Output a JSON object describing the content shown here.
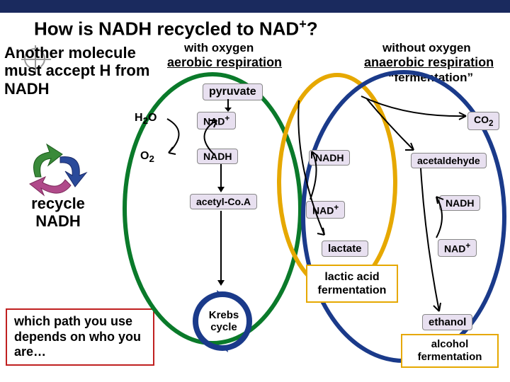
{
  "title_html": "How is NADH recycled to NAD<sup>+</sup>?",
  "side": {
    "another": "Another molecule must accept H from NADH",
    "recycle": "recycle NADH",
    "which": "which path you use depends on who you are…"
  },
  "headers": {
    "with_oxygen": "with oxygen",
    "aerobic": "aerobic respiration",
    "without_oxygen": "without oxygen",
    "anaerobic": "anaerobic respiration",
    "fermentation": "“fermentation”"
  },
  "nodes": {
    "pyruvate": "pyruvate",
    "nad_plus": "NAD",
    "h2o": "H",
    "o2": "O",
    "nadh_l": "NADH",
    "acetyl": "acetyl-Co.A",
    "krebs": "Krebs cycle",
    "nadh_m": "NADH",
    "nad_plus_m": "NAD",
    "lactate": "lactate",
    "lactic": "lactic acid fermentation",
    "co2": "CO",
    "acet": "acetaldehyde",
    "nadh_r": "NADH",
    "nad_plus_r": "NAD",
    "ethanol": "ethanol",
    "alcohol": "alcohol fermentation"
  },
  "colors": {
    "topbar": "#1a2a5e",
    "green_ring": "#0a7a2a",
    "yellow_ring": "#e6a800",
    "blue_ring": "#1a3a8a",
    "pill_bg": "#e8e0f0",
    "box_red": "#c02020"
  }
}
